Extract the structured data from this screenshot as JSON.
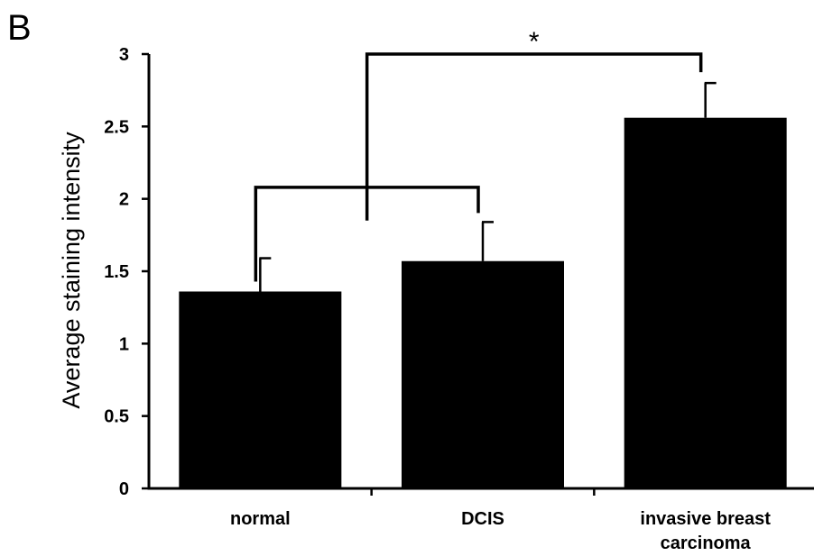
{
  "panel_label": "B",
  "chart_data": {
    "type": "bar",
    "categories": [
      "normal",
      "DCIS",
      "invasive breast carcinoma"
    ],
    "category_lines": [
      [
        "normal"
      ],
      [
        "DCIS"
      ],
      [
        "invasive breast",
        "carcinoma"
      ]
    ],
    "values": [
      1.36,
      1.57,
      2.56
    ],
    "error_upper": [
      0.23,
      0.27,
      0.24
    ],
    "ylabel": "Average staining intensity",
    "xlabel": "",
    "ylim": [
      0,
      3
    ],
    "yticks": [
      0,
      0.5,
      1,
      1.5,
      2,
      2.5,
      3
    ],
    "ytick_labels": [
      "0",
      "0.5",
      "1",
      "1.5",
      "2",
      "2.5",
      "3"
    ],
    "bar_color": "#000000",
    "grid": false,
    "significance": {
      "label": "*",
      "group_bracket": [
        "normal",
        "DCIS"
      ],
      "compared_to": "invasive breast carcinoma"
    }
  }
}
